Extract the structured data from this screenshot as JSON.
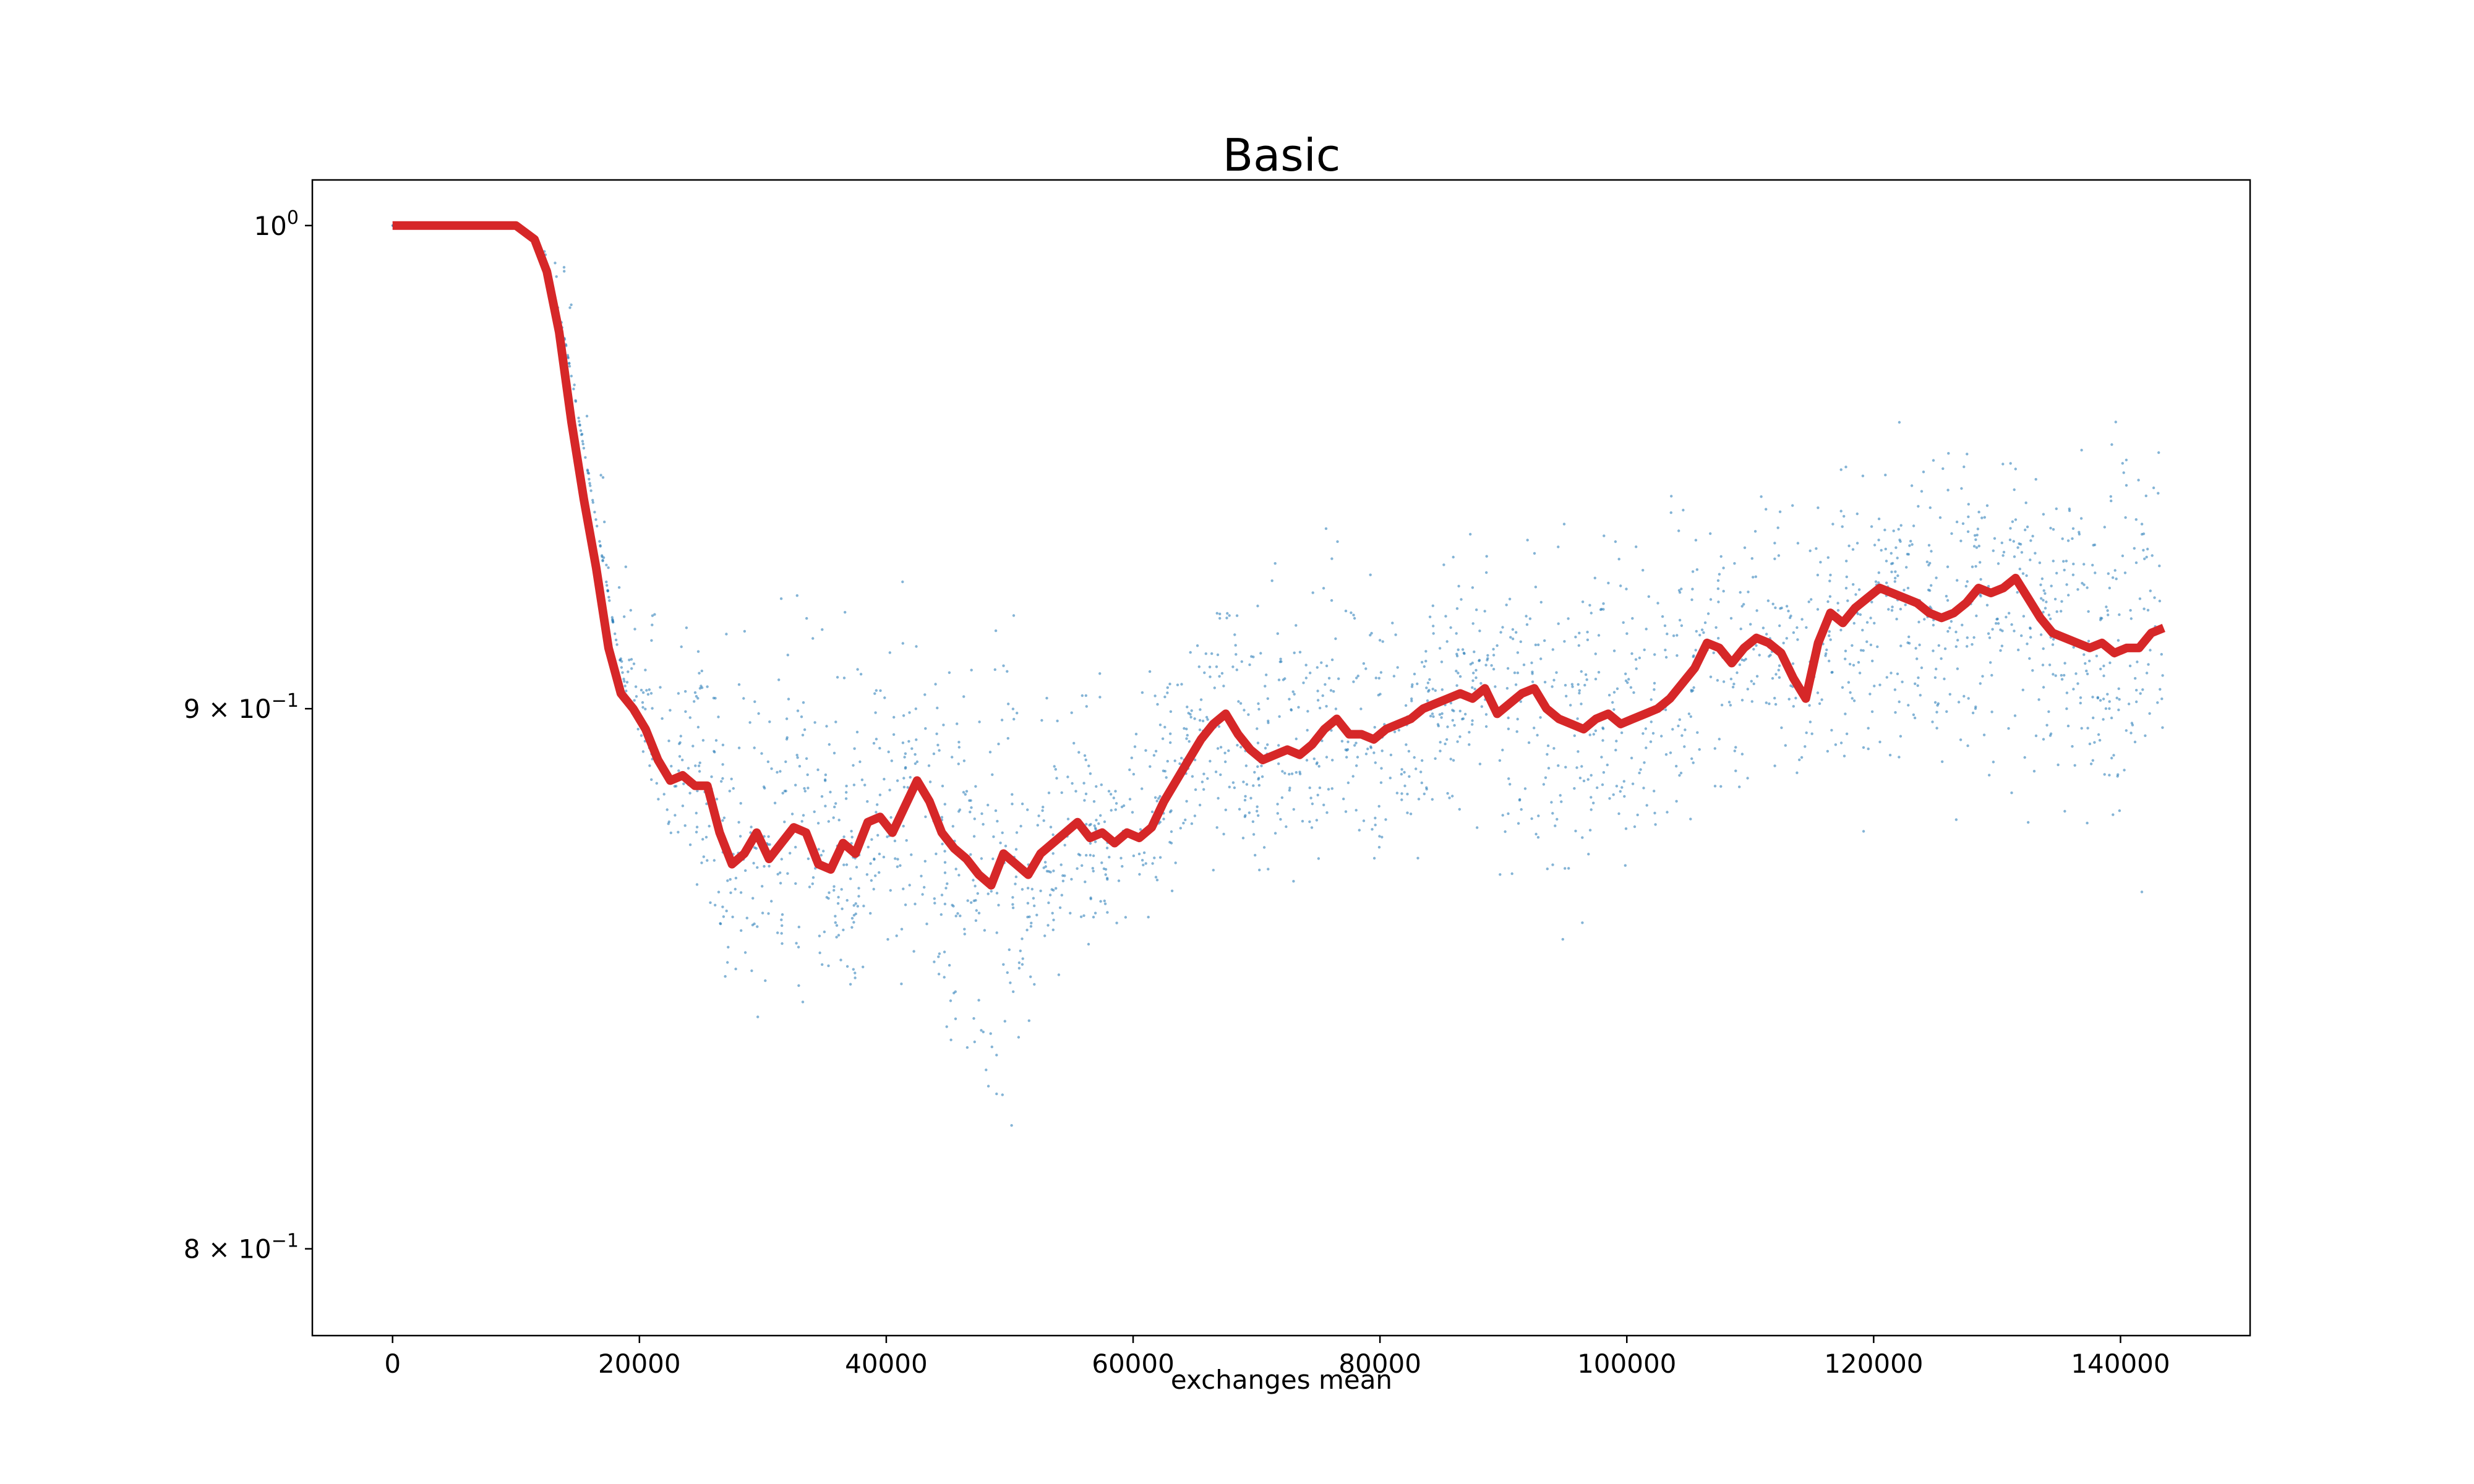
{
  "chart_data": {
    "type": "scatter",
    "title": "Basic",
    "xlabel": "exchanges mean",
    "ylabel": "",
    "xlim": [
      -6500,
      150500
    ],
    "ylim": [
      0.785,
      1.01
    ],
    "yscale": "log",
    "grid": false,
    "legend": "none",
    "x_ticks": [
      {
        "value": 0,
        "label": "0"
      },
      {
        "value": 20000,
        "label": "20000"
      },
      {
        "value": 40000,
        "label": "40000"
      },
      {
        "value": 60000,
        "label": "60000"
      },
      {
        "value": 80000,
        "label": "80000"
      },
      {
        "value": 100000,
        "label": "100000"
      },
      {
        "value": 120000,
        "label": "120000"
      },
      {
        "value": 140000,
        "label": "140000"
      }
    ],
    "y_ticks": [
      {
        "value": 1.0,
        "base": "10",
        "exp": "0",
        "prefix": ""
      },
      {
        "value": 0.9,
        "base": "10",
        "exp": "−1",
        "prefix": "9 × "
      },
      {
        "value": 0.8,
        "base": "10",
        "exp": "−1",
        "prefix": "8 × "
      }
    ],
    "series": [
      {
        "kind": "scatter",
        "color": "#1f77b4",
        "envelope_x": [
          0,
          10000,
          12000,
          14000,
          16000,
          18000,
          20000,
          22000,
          25000,
          28000,
          31000,
          34000,
          37000,
          40000,
          43000,
          46000,
          48000,
          50000,
          53000,
          56000,
          60000,
          63000,
          66000,
          70000,
          74000,
          78000,
          82000,
          86000,
          90000,
          94000,
          98000,
          102000,
          106000,
          110000,
          114000,
          118000,
          122000,
          126000,
          130000,
          134000,
          138000,
          141000,
          143500
        ],
        "envelope_low": [
          1.0,
          1.0,
          0.993,
          0.975,
          0.945,
          0.915,
          0.89,
          0.87,
          0.855,
          0.83,
          0.83,
          0.835,
          0.84,
          0.845,
          0.84,
          0.81,
          0.79,
          0.81,
          0.84,
          0.845,
          0.85,
          0.86,
          0.865,
          0.86,
          0.86,
          0.86,
          0.865,
          0.865,
          0.86,
          0.84,
          0.855,
          0.86,
          0.87,
          0.875,
          0.875,
          0.87,
          0.87,
          0.87,
          0.87,
          0.87,
          0.865,
          0.855,
          0.85
        ],
        "envelope_high": [
          1.0,
          1.0,
          1.0,
          0.998,
          0.975,
          0.945,
          0.932,
          0.928,
          0.925,
          0.93,
          0.935,
          0.935,
          0.932,
          0.93,
          0.928,
          0.927,
          0.93,
          0.93,
          0.922,
          0.92,
          0.922,
          0.925,
          0.93,
          0.935,
          0.94,
          0.945,
          0.942,
          0.94,
          0.943,
          0.943,
          0.945,
          0.948,
          0.95,
          0.95,
          0.952,
          0.955,
          0.96,
          0.965,
          0.965,
          0.96,
          0.975,
          0.98,
          0.975
        ]
      },
      {
        "kind": "line",
        "color": "#d62728",
        "x": [
          0,
          10000,
          11500,
          12500,
          13500,
          14500,
          15500,
          16500,
          17500,
          18500,
          19500,
          20500,
          21500,
          22500,
          23500,
          24500,
          25500,
          26500,
          27500,
          28500,
          29500,
          30500,
          31500,
          32500,
          33500,
          34500,
          35500,
          36500,
          37500,
          38500,
          39500,
          40500,
          41500,
          42500,
          43500,
          44500,
          45500,
          46500,
          47500,
          48500,
          49500,
          50500,
          51500,
          52500,
          53500,
          54500,
          55500,
          56500,
          57500,
          58500,
          59500,
          60500,
          61500,
          62500,
          63500,
          64500,
          65500,
          66500,
          67500,
          68500,
          69500,
          70500,
          71500,
          72500,
          73500,
          74500,
          75500,
          76500,
          77500,
          78500,
          79500,
          80500,
          81500,
          82500,
          83500,
          84500,
          85500,
          86500,
          87500,
          88500,
          89500,
          90500,
          91500,
          92500,
          93500,
          94500,
          95500,
          96500,
          97500,
          98500,
          99500,
          100500,
          101500,
          102500,
          103500,
          104500,
          105500,
          106500,
          107500,
          108500,
          109500,
          110500,
          111500,
          112500,
          113500,
          114500,
          115500,
          116500,
          117500,
          118500,
          119500,
          120500,
          121500,
          122500,
          123500,
          124500,
          125500,
          126500,
          127500,
          128500,
          129500,
          130500,
          131500,
          132500,
          133500,
          134500,
          135500,
          136500,
          137500,
          138500,
          139500,
          140500,
          141500,
          142500,
          143500
        ],
        "y": [
          1.0,
          1.0,
          0.997,
          0.99,
          0.977,
          0.958,
          0.942,
          0.928,
          0.912,
          0.903,
          0.9,
          0.896,
          0.89,
          0.886,
          0.887,
          0.885,
          0.885,
          0.876,
          0.87,
          0.872,
          0.876,
          0.871,
          0.874,
          0.877,
          0.876,
          0.87,
          0.869,
          0.874,
          0.872,
          0.878,
          0.879,
          0.876,
          0.881,
          0.886,
          0.882,
          0.876,
          0.873,
          0.871,
          0.868,
          0.866,
          0.872,
          0.87,
          0.868,
          0.872,
          0.874,
          0.876,
          0.878,
          0.875,
          0.876,
          0.874,
          0.876,
          0.875,
          0.877,
          0.882,
          0.886,
          0.89,
          0.894,
          0.897,
          0.899,
          0.895,
          0.892,
          0.89,
          0.891,
          0.892,
          0.891,
          0.893,
          0.896,
          0.898,
          0.895,
          0.895,
          0.894,
          0.896,
          0.897,
          0.898,
          0.9,
          0.901,
          0.902,
          0.903,
          0.902,
          0.904,
          0.899,
          0.901,
          0.903,
          0.904,
          0.9,
          0.898,
          0.897,
          0.896,
          0.898,
          0.899,
          0.897,
          0.898,
          0.899,
          0.9,
          0.902,
          0.905,
          0.908,
          0.913,
          0.912,
          0.909,
          0.912,
          0.914,
          0.913,
          0.911,
          0.906,
          0.902,
          0.913,
          0.919,
          0.917,
          0.92,
          0.922,
          0.924,
          0.923,
          0.922,
          0.921,
          0.919,
          0.918,
          0.919,
          0.921,
          0.924,
          0.923,
          0.924,
          0.926,
          0.922,
          0.918,
          0.915,
          0.914,
          0.913,
          0.912,
          0.913,
          0.911,
          0.912,
          0.912,
          0.915,
          0.916
        ]
      }
    ]
  }
}
